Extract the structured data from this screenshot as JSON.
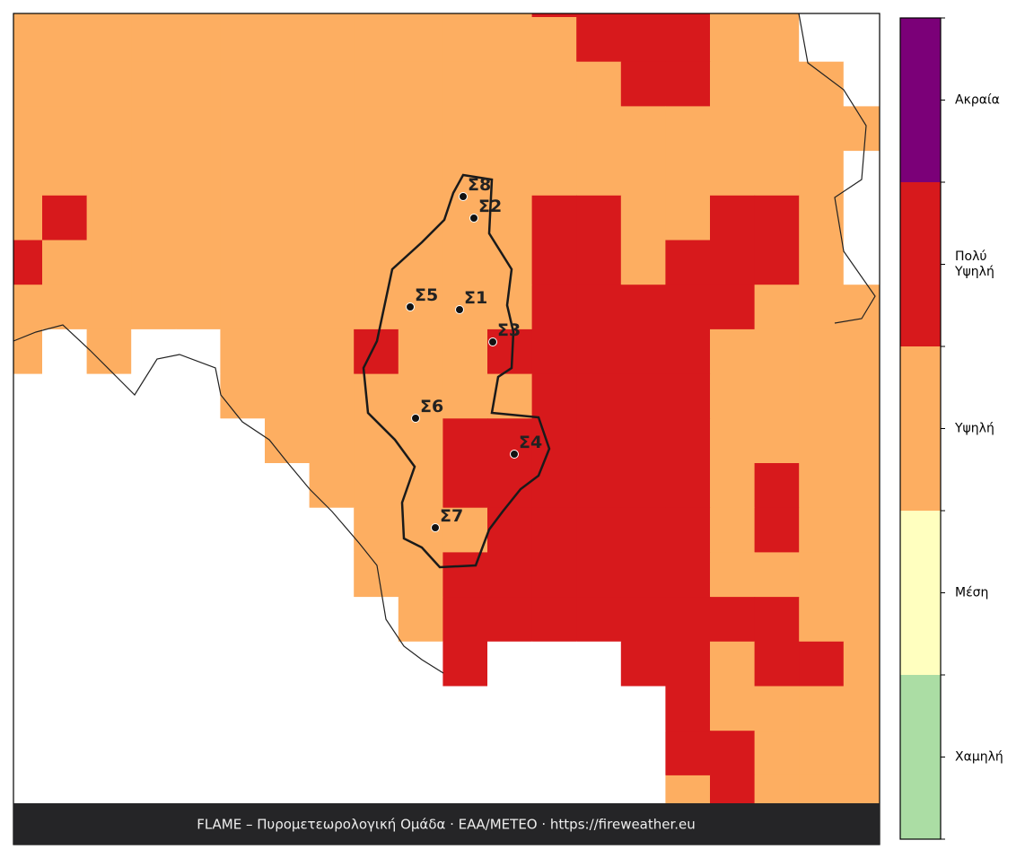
{
  "map": {
    "stations": [
      "Σ1",
      "Σ2",
      "Σ3",
      "Σ4",
      "Σ5",
      "Σ6",
      "Σ7",
      "Σ8"
    ],
    "legend": [
      "Χαμηλή",
      "Μέση",
      "Υψηλή",
      "Πολύ Υψηλή",
      "Ακραία"
    ],
    "footer": "FLAME – Πυρομετεωρολογική Ομάδα · ΕΑΑ/METEO · https://fireweather.eu"
  }
}
